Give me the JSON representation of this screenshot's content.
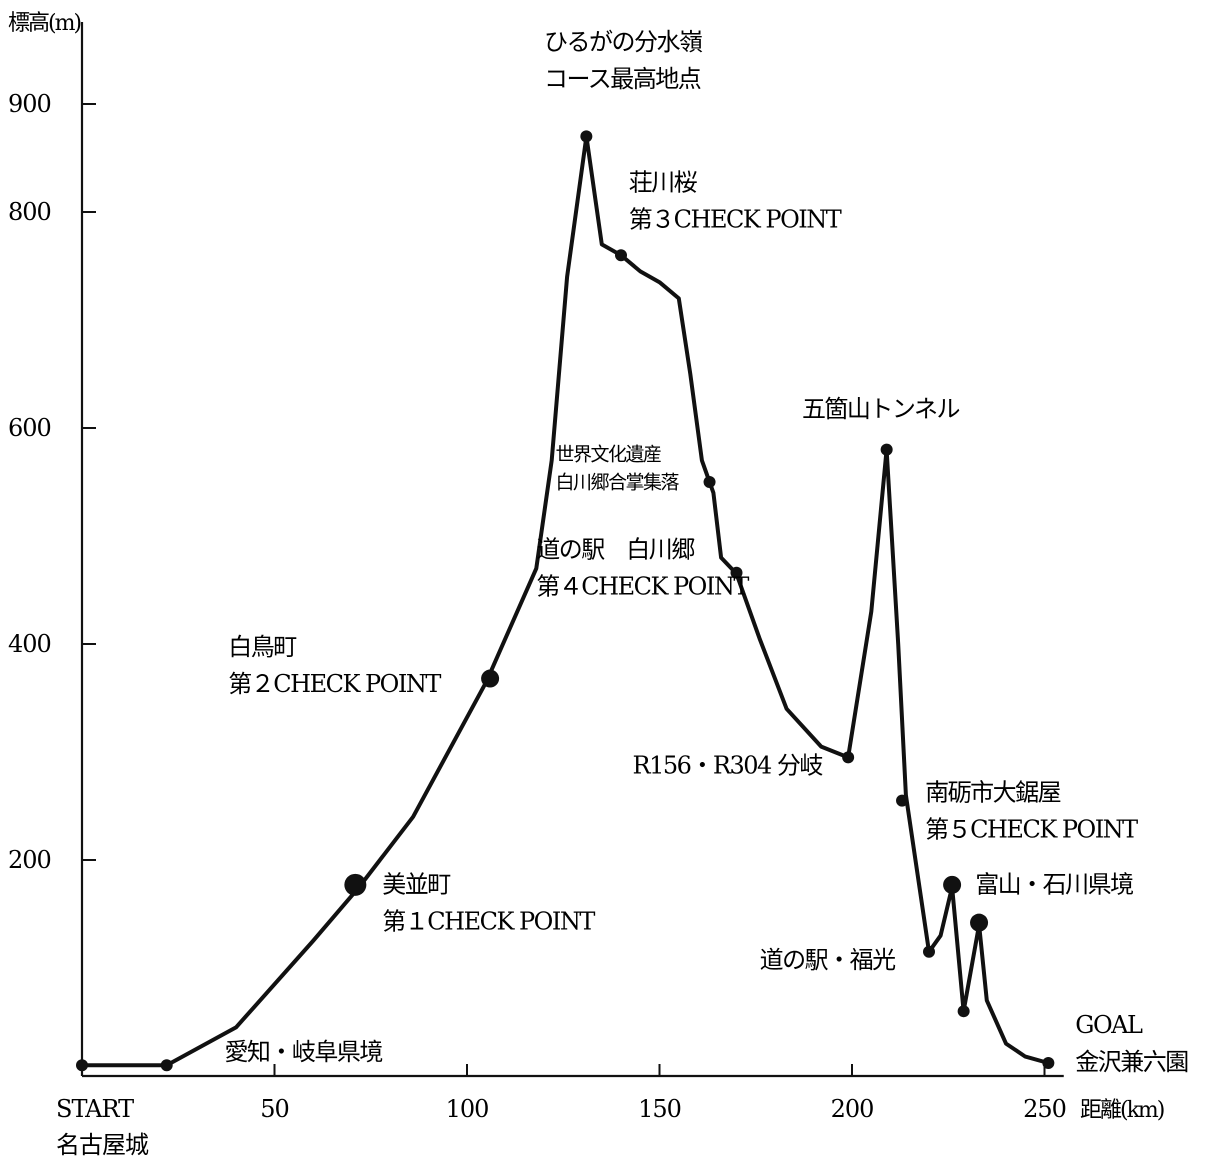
{
  "chart_data": {
    "type": "line",
    "ylabel": "標高(m)",
    "xlabel": "距離(km)",
    "xlim": [
      0,
      255
    ],
    "ylim": [
      0,
      950
    ],
    "grid": false,
    "yticks": [
      {
        "value": 200,
        "label": "200"
      },
      {
        "value": 400,
        "label": "400"
      },
      {
        "value": 600,
        "label": "600"
      },
      {
        "value": 800,
        "label": "800"
      },
      {
        "value": 900,
        "label": "900"
      }
    ],
    "xticks": [
      {
        "value": 0,
        "label": "START"
      },
      {
        "value": 50,
        "label": "50"
      },
      {
        "value": 100,
        "label": "100"
      },
      {
        "value": 150,
        "label": "150"
      },
      {
        "value": 200,
        "label": "200"
      },
      {
        "value": 250,
        "label": "250"
      }
    ],
    "start_subtitle": "名古屋城",
    "series": [
      {
        "points": [
          [
            0,
            10
          ],
          [
            22,
            10
          ],
          [
            40,
            45
          ],
          [
            60,
            125
          ],
          [
            72,
            175
          ],
          [
            86,
            240
          ],
          [
            105,
            365
          ],
          [
            118,
            470
          ],
          [
            122,
            570
          ],
          [
            126,
            740
          ],
          [
            131,
            870
          ],
          [
            135,
            770
          ],
          [
            140,
            760
          ],
          [
            145,
            745
          ],
          [
            150,
            735
          ],
          [
            155,
            720
          ],
          [
            158,
            650
          ],
          [
            161,
            570
          ],
          [
            164,
            540
          ],
          [
            166,
            480
          ],
          [
            170,
            465
          ],
          [
            176,
            405
          ],
          [
            183,
            340
          ],
          [
            192,
            305
          ],
          [
            199,
            295
          ],
          [
            205,
            430
          ],
          [
            209,
            580
          ],
          [
            212,
            400
          ],
          [
            214,
            260
          ],
          [
            220,
            115
          ],
          [
            223,
            130
          ],
          [
            226,
            175
          ],
          [
            229,
            60
          ],
          [
            233,
            140
          ],
          [
            235,
            70
          ],
          [
            240,
            30
          ],
          [
            245,
            18
          ],
          [
            251,
            12
          ]
        ]
      }
    ],
    "markers": [
      {
        "x": 0,
        "y": 10,
        "size": "small"
      },
      {
        "x": 22,
        "y": 10,
        "size": "small"
      },
      {
        "x": 71,
        "y": 177,
        "size": "large"
      },
      {
        "x": 106,
        "y": 368,
        "size": "medium"
      },
      {
        "x": 131,
        "y": 870,
        "size": "small"
      },
      {
        "x": 140,
        "y": 760,
        "size": "small"
      },
      {
        "x": 163,
        "y": 550,
        "size": "small"
      },
      {
        "x": 170,
        "y": 466,
        "size": "small"
      },
      {
        "x": 199,
        "y": 295,
        "size": "small"
      },
      {
        "x": 209,
        "y": 580,
        "size": "small"
      },
      {
        "x": 213,
        "y": 255,
        "size": "small"
      },
      {
        "x": 220,
        "y": 115,
        "size": "small"
      },
      {
        "x": 226,
        "y": 177,
        "size": "medium"
      },
      {
        "x": 229,
        "y": 60,
        "size": "small"
      },
      {
        "x": 233,
        "y": 142,
        "size": "medium"
      },
      {
        "x": 251,
        "y": 12,
        "size": "small"
      }
    ],
    "annotations": [
      {
        "name": "aichi-gifu-border",
        "lines": [
          "愛知・岐阜県境"
        ],
        "x": 37,
        "y": 15
      },
      {
        "name": "mino",
        "lines": [
          "美並町",
          "第１CHECK POINT"
        ],
        "x": 78,
        "y": 170
      },
      {
        "name": "shirotori",
        "lines": [
          "白鳥町",
          "第２CHECK POINT"
        ],
        "x": 38,
        "y": 390
      },
      {
        "name": "hirugano",
        "lines": [
          "ひるがの分水嶺",
          "コース最高地点"
        ],
        "x": 120,
        "y": 950
      },
      {
        "name": "shokawa",
        "lines": [
          "荘川桜",
          "第３CHECK POINT"
        ],
        "x": 142,
        "y": 820
      },
      {
        "name": "shirakawago-heritage",
        "lines": [
          "世界文化遺産",
          "白川郷合掌集落"
        ],
        "x": 123,
        "y": 570,
        "small": true
      },
      {
        "name": "michinoeki-shirakawago",
        "lines": [
          "道の駅　白川郷",
          "第４CHECK POINT"
        ],
        "x": 118,
        "y": 480
      },
      {
        "name": "r156-r304",
        "lines": [
          "R156・R304 分岐"
        ],
        "x": 143,
        "y": 280
      },
      {
        "name": "gokayama-tunnel",
        "lines": [
          "五箇山トンネル"
        ],
        "x": 187,
        "y": 610
      },
      {
        "name": "nanto-oonokoya",
        "lines": [
          "南砺市大鋸屋",
          "第５CHECK POINT"
        ],
        "x": 219,
        "y": 255
      },
      {
        "name": "toyama-ishikawa-border",
        "lines": [
          "富山・石川県境"
        ],
        "x": 232,
        "y": 170
      },
      {
        "name": "michinoeki-fukumitsu",
        "lines": [
          "道の駅・福光"
        ],
        "x": 176,
        "y": 100
      },
      {
        "name": "goal",
        "lines": [
          "GOAL",
          "金沢兼六園"
        ],
        "x": 258,
        "y": 40
      }
    ]
  }
}
